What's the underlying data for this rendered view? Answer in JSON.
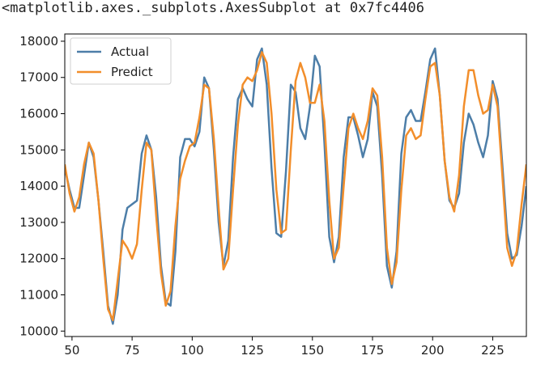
{
  "output_repr": "<matplotlib.axes._subplots.AxesSubplot at 0x7fc4406",
  "chart_data": {
    "type": "line",
    "xlim": [
      47,
      239
    ],
    "ylim": [
      9850,
      18200
    ],
    "x_ticks": [
      50,
      75,
      100,
      125,
      150,
      175,
      200,
      225
    ],
    "y_ticks": [
      10000,
      11000,
      12000,
      13000,
      14000,
      15000,
      16000,
      17000,
      18000
    ],
    "grid": false,
    "legend_position": "top-left",
    "colors": {
      "Actual": "#4d7ea8",
      "Predict": "#f28e2b"
    },
    "series": [
      {
        "name": "Actual",
        "x": [
          47,
          49,
          51,
          53,
          55,
          57,
          59,
          61,
          63,
          65,
          67,
          69,
          71,
          73,
          75,
          77,
          79,
          81,
          83,
          85,
          87,
          89,
          91,
          93,
          95,
          97,
          99,
          101,
          103,
          105,
          107,
          109,
          111,
          113,
          115,
          117,
          119,
          121,
          123,
          125,
          127,
          129,
          131,
          133,
          135,
          137,
          139,
          141,
          143,
          145,
          147,
          149,
          151,
          153,
          155,
          157,
          159,
          161,
          163,
          165,
          167,
          169,
          171,
          173,
          175,
          177,
          179,
          181,
          183,
          185,
          187,
          189,
          191,
          193,
          195,
          197,
          199,
          201,
          203,
          205,
          207,
          209,
          211,
          213,
          215,
          217,
          219,
          221,
          223,
          225,
          227,
          229,
          231,
          233,
          235,
          237,
          239
        ],
        "values": [
          14500,
          13900,
          13400,
          13400,
          14300,
          15200,
          14800,
          13600,
          12200,
          10700,
          10200,
          11000,
          12800,
          13400,
          13500,
          13600,
          14900,
          15400,
          15000,
          13700,
          11800,
          10800,
          10700,
          12200,
          14800,
          15300,
          15300,
          15100,
          15500,
          17000,
          16700,
          15000,
          13000,
          11800,
          12500,
          14800,
          16400,
          16700,
          16400,
          16200,
          17500,
          17800,
          16800,
          14500,
          12700,
          12600,
          14400,
          16800,
          16600,
          15600,
          15300,
          16200,
          17600,
          17300,
          15200,
          12600,
          11900,
          12600,
          14800,
          15900,
          15900,
          15400,
          14800,
          15300,
          16600,
          16200,
          14300,
          11800,
          11200,
          12200,
          14900,
          15900,
          16100,
          15800,
          15800,
          16600,
          17500,
          17800,
          16500,
          14700,
          13600,
          13400,
          13800,
          15200,
          16000,
          15700,
          15200,
          14800,
          15400,
          16900,
          16400,
          14600,
          12700,
          12000,
          12100,
          12900,
          14000
        ]
      },
      {
        "name": "Predict",
        "x": [
          47,
          49,
          51,
          53,
          55,
          57,
          59,
          61,
          63,
          65,
          67,
          69,
          71,
          73,
          75,
          77,
          79,
          81,
          83,
          85,
          87,
          89,
          91,
          93,
          95,
          97,
          99,
          101,
          103,
          105,
          107,
          109,
          111,
          113,
          115,
          117,
          119,
          121,
          123,
          125,
          127,
          129,
          131,
          133,
          135,
          137,
          139,
          141,
          143,
          145,
          147,
          149,
          151,
          153,
          155,
          157,
          159,
          161,
          163,
          165,
          167,
          169,
          171,
          173,
          175,
          177,
          179,
          181,
          183,
          185,
          187,
          189,
          191,
          193,
          195,
          197,
          199,
          201,
          203,
          205,
          207,
          209,
          211,
          213,
          215,
          217,
          219,
          221,
          223,
          225,
          227,
          229,
          231,
          233,
          235,
          237,
          239
        ],
        "values": [
          14600,
          13800,
          13300,
          13700,
          14600,
          15200,
          14900,
          13600,
          12000,
          10600,
          10300,
          11400,
          12500,
          12300,
          12000,
          12400,
          13900,
          15200,
          15000,
          13200,
          11600,
          10700,
          11100,
          12900,
          14200,
          14700,
          15100,
          15200,
          15900,
          16800,
          16700,
          15300,
          13400,
          11700,
          12000,
          13900,
          15700,
          16800,
          17000,
          16900,
          17200,
          17700,
          17400,
          16000,
          13900,
          12700,
          12800,
          15000,
          16900,
          17400,
          17000,
          16300,
          16300,
          16800,
          15800,
          13600,
          12000,
          12300,
          14000,
          15600,
          16000,
          15600,
          15300,
          15800,
          16700,
          16500,
          14800,
          12300,
          11300,
          11900,
          13900,
          15400,
          15600,
          15300,
          15400,
          16400,
          17300,
          17400,
          16500,
          14700,
          13700,
          13300,
          14300,
          16200,
          17200,
          17200,
          16500,
          16000,
          16100,
          16800,
          16200,
          14300,
          12300,
          11800,
          12200,
          13500,
          14600
        ]
      }
    ]
  }
}
